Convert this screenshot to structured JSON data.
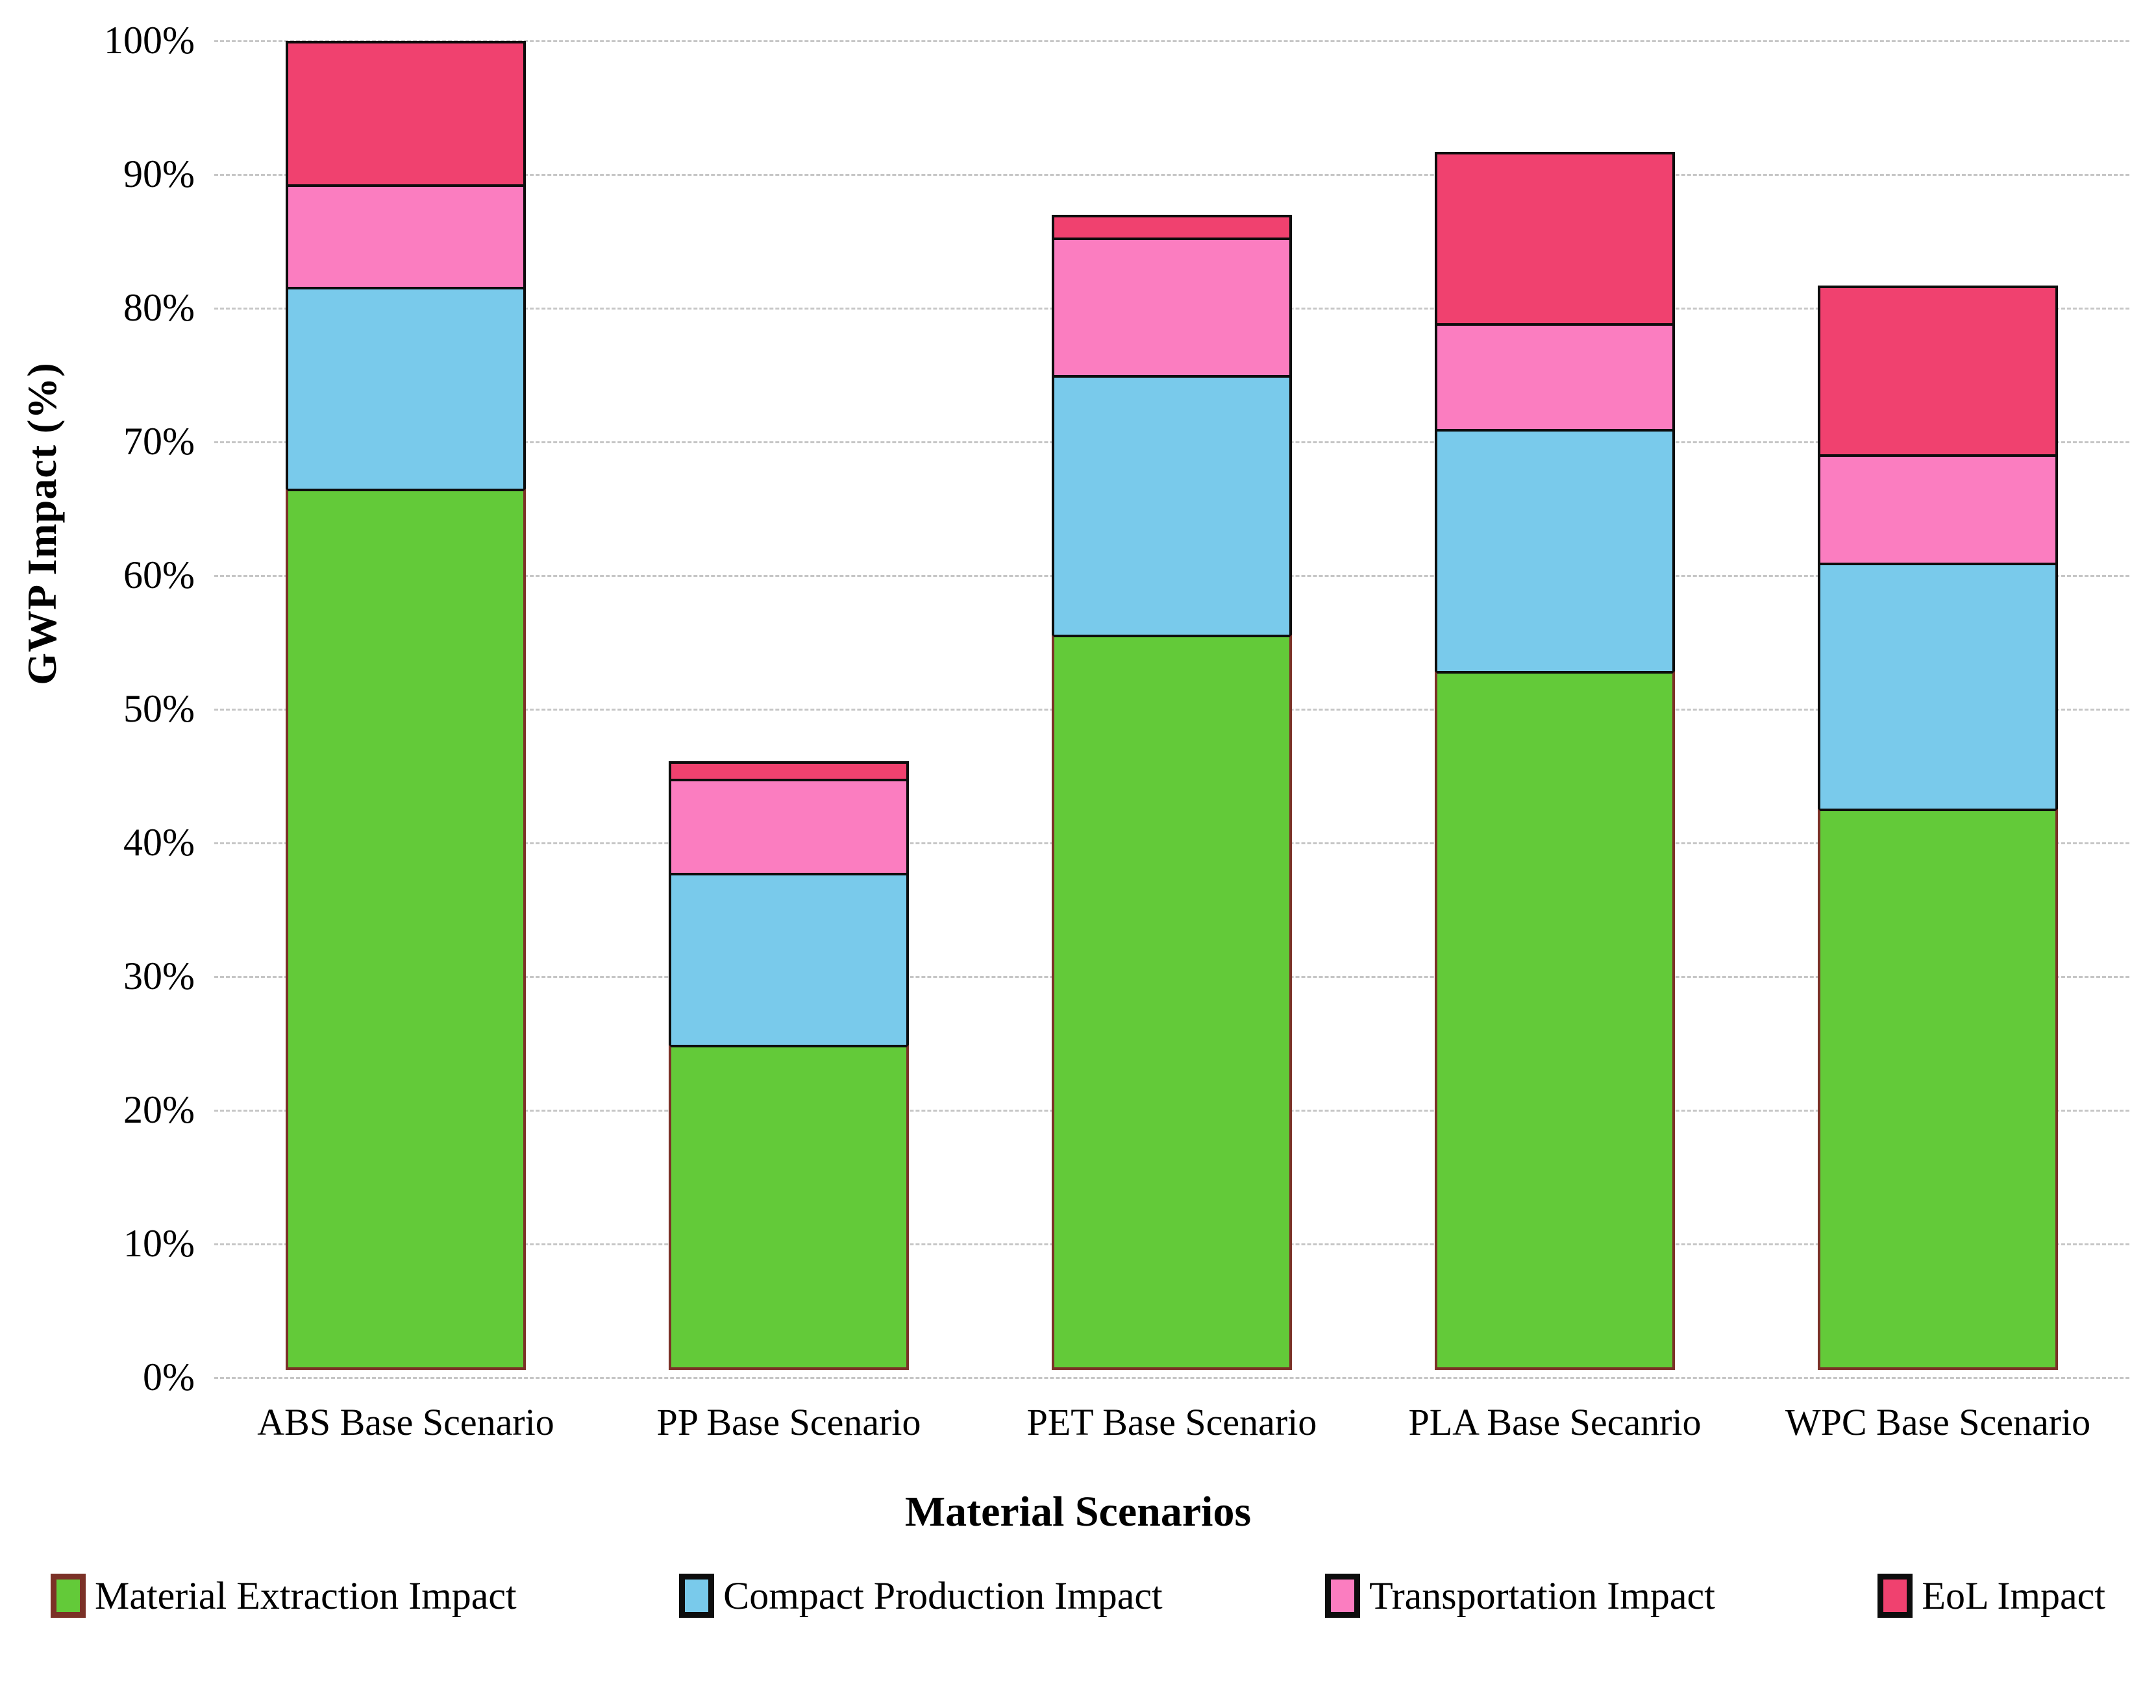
{
  "chart_data": {
    "type": "bar",
    "stacked": true,
    "title": "",
    "xlabel": "Material Scenarios",
    "ylabel": "GWP Impact  (%)",
    "categories": [
      "ABS Base Scenario",
      "PP Base Scenario",
      "PET Base Scenario",
      "PLA Base Secanrio",
      "WPC Base Scenario"
    ],
    "series": [
      {
        "name": "Material Extraction Impact",
        "color": "#63ca39",
        "border_color": "#7b3127",
        "values": [
          65.9,
          24.3,
          55.0,
          52.3,
          42.0
        ]
      },
      {
        "name": "Compact Production Impact",
        "color": "#79caeb",
        "border_color": "#0d0d0d",
        "values": [
          15.3,
          13.1,
          19.6,
          18.3,
          18.6
        ]
      },
      {
        "name": "Transportation Impact",
        "color": "#fb7dc0",
        "border_color": "#0d0d0d",
        "values": [
          7.9,
          7.2,
          10.5,
          8.1,
          8.3
        ]
      },
      {
        "name": "EoL Impact",
        "color": "#f0416f",
        "border_color": "#0d0d0d",
        "values": [
          10.9,
          1.5,
          1.9,
          13.0,
          12.8
        ]
      }
    ],
    "bar_totals": [
      100.0,
      46.1,
      87.0,
      91.7,
      81.7
    ],
    "y_ticks": [
      "0%",
      "10%",
      "20%",
      "30%",
      "40%",
      "50%",
      "60%",
      "70%",
      "80%",
      "90%",
      "100%"
    ],
    "ylim": [
      0,
      100
    ],
    "grid": "horizontal-dashed",
    "gridline_color": "#c6c6c6",
    "legend_position": "bottom"
  }
}
